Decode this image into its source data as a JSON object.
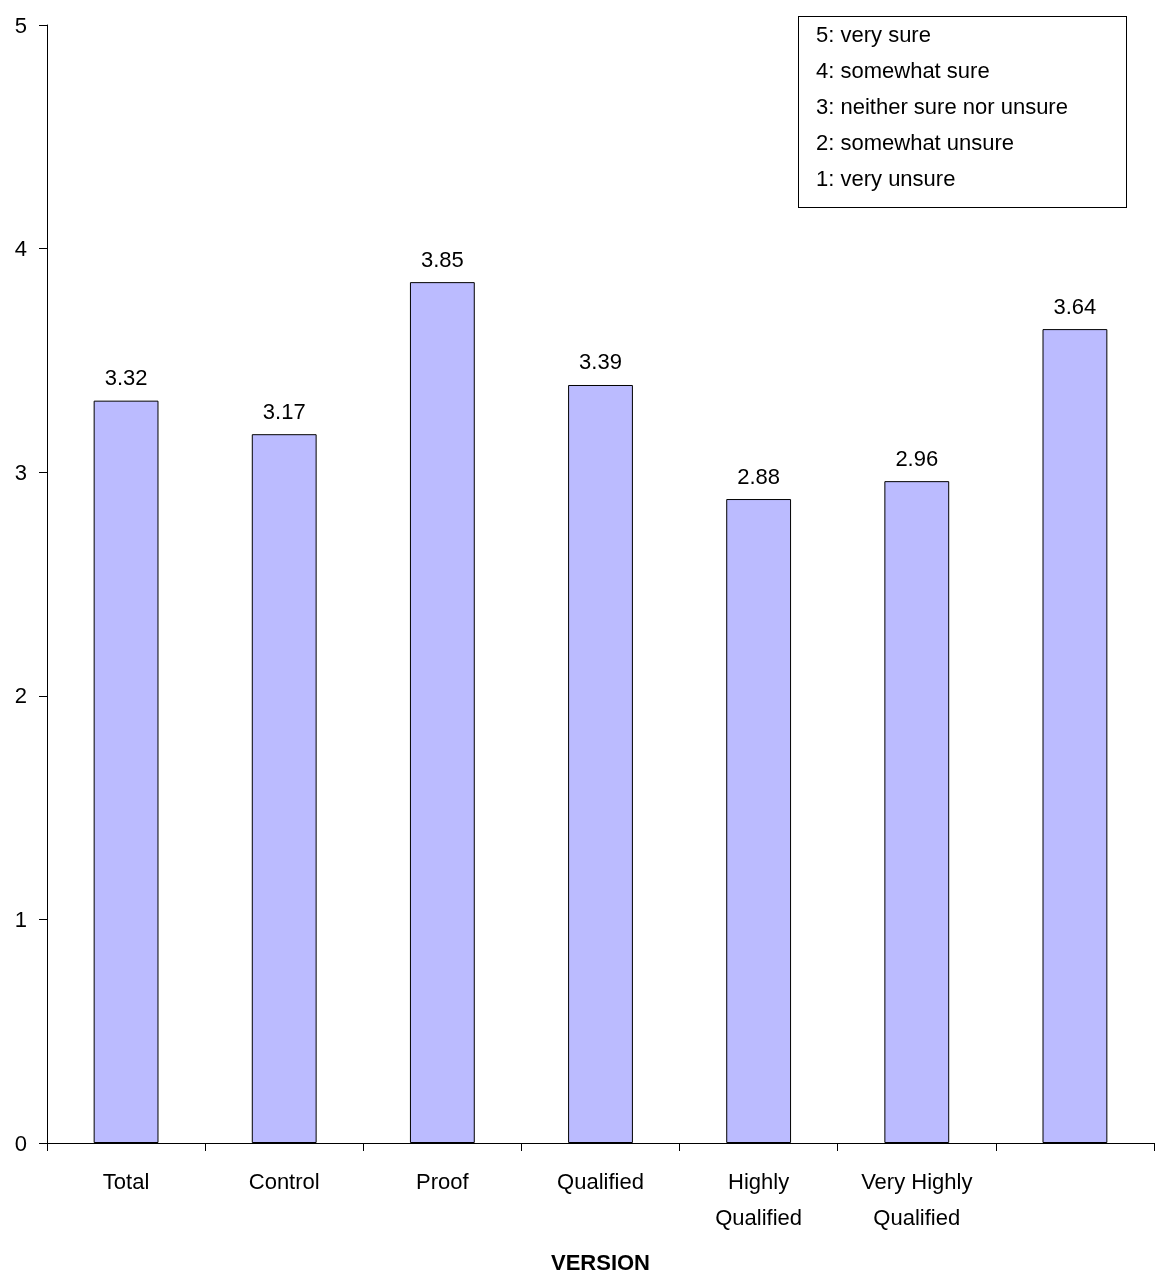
{
  "chart_data": {
    "type": "bar",
    "xlabel": "VERSION",
    "categories": [
      "Total",
      "Control",
      "Proof",
      "Qualified",
      "Highly\nQualified",
      "Very Highly\nQualified",
      null
    ],
    "values": [
      3.32,
      3.17,
      3.85,
      3.39,
      2.88,
      2.96,
      3.64
    ],
    "color": "#bbbbff",
    "ylim": [
      0,
      5
    ],
    "yticks": [
      0,
      1,
      2,
      3,
      4,
      5
    ],
    "grid": false,
    "data_labels": true,
    "annotations": [
      "5: very sure",
      "4: somewhat sure",
      "3: neither sure nor unsure",
      "2: somewhat unsure",
      "1: very unsure"
    ]
  }
}
